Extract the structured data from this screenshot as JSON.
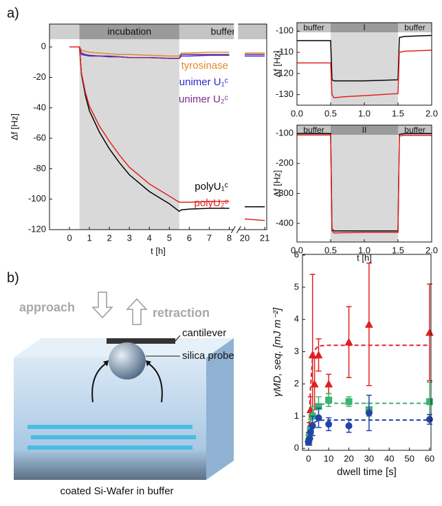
{
  "panel_labels": [
    "a)",
    "b)"
  ],
  "chart_data": [
    {
      "type": "line",
      "xlabel": "t [h]",
      "ylabel": "Δf [Hz]",
      "xlim": [
        -1,
        21.1
      ],
      "x_break": [
        8.2,
        19.7
      ],
      "ylim": [
        -120,
        15
      ],
      "xticks": [
        0,
        1,
        2,
        3,
        4,
        5,
        6,
        7,
        8,
        20,
        21
      ],
      "yticks": [
        0,
        -20,
        -40,
        -60,
        -80,
        -100,
        -120
      ],
      "regions": [
        {
          "label": "incubation",
          "x": [
            0.5,
            5.5
          ],
          "color": "#9a9a9a",
          "shaded": true
        },
        {
          "label": "buffer",
          "x": [
            5.5,
            21.1
          ],
          "color": "#c4c4c4",
          "shaded": false
        }
      ],
      "x": [
        0,
        0.5,
        0.6,
        0.8,
        1,
        1.5,
        2,
        2.5,
        3,
        4,
        5,
        5.5,
        5.6,
        6,
        7,
        8,
        20,
        21
      ],
      "series": [
        {
          "name": "tyrosinase",
          "color": "#e08a2c",
          "values": [
            0,
            0,
            -2,
            -3,
            -3.5,
            -4,
            -4.5,
            -5,
            -5,
            -5.5,
            -6,
            -6,
            -4,
            -4,
            -3.5,
            -3.5,
            -4,
            -4
          ]
        },
        {
          "name": "unimer U₁ᶜ",
          "color": "#2a2ad0",
          "values": [
            0,
            0,
            -5,
            -5.5,
            -6,
            -6,
            -6.5,
            -6.5,
            -7,
            -7,
            -7.5,
            -7.5,
            -6,
            -6,
            -5.5,
            -5.5,
            -6,
            -6
          ]
        },
        {
          "name": "unimer U₂ᶜ",
          "color": "#7a2a8a",
          "values": [
            0,
            0,
            -4,
            -5,
            -5.5,
            -6,
            -6,
            -6.5,
            -7,
            -7,
            -7.5,
            -7.5,
            -5,
            -5,
            -5,
            -5,
            -5,
            -5
          ]
        },
        {
          "name": "polyU₁ᶜ",
          "color": "#000000",
          "values": [
            0,
            0,
            -18,
            -32,
            -42,
            -56,
            -67,
            -76,
            -84,
            -95,
            -103,
            -108,
            -107,
            -106.5,
            -106,
            -106,
            -105,
            -105
          ]
        },
        {
          "name": "polyU₂ᶜ",
          "color": "#e02020",
          "values": [
            0,
            0,
            -17,
            -30,
            -39,
            -52,
            -62,
            -71,
            -79,
            -90,
            -98,
            -102,
            -102,
            -102,
            -101.5,
            -101.5,
            -113,
            -114
          ]
        }
      ]
    },
    {
      "type": "line",
      "ylabel": "Δf [Hz]",
      "xlim": [
        0,
        2
      ],
      "ylim": [
        -135,
        -96
      ],
      "xticks": [
        {
          "value": 0,
          "label": "0.0"
        },
        {
          "value": 0.5,
          "label": "0.5"
        },
        {
          "value": 1,
          "label": "1.0"
        },
        {
          "value": 1.5,
          "label": "1.5"
        },
        {
          "value": 2,
          "label": "2.0"
        }
      ],
      "yticks": [
        -100,
        -110,
        -120,
        -130
      ],
      "regions": [
        {
          "label": "buffer",
          "x": [
            0,
            0.5
          ],
          "color": "#c4c4c4",
          "shaded": false
        },
        {
          "label": "I",
          "x": [
            0.5,
            1.5
          ],
          "color": "#9a9a9a",
          "shaded": true
        },
        {
          "label": "buffer",
          "x": [
            1.5,
            2
          ],
          "color": "#c4c4c4",
          "shaded": false
        }
      ],
      "x": [
        0,
        0.5,
        0.52,
        0.55,
        0.7,
        1,
        1.5,
        1.52,
        1.6,
        2
      ],
      "series": [
        {
          "color": "#000000",
          "values": [
            -104.5,
            -104.5,
            -123,
            -123.5,
            -123.5,
            -123.5,
            -123,
            -103,
            -102.5,
            -102
          ]
        },
        {
          "color": "#e02020",
          "values": [
            -115,
            -115,
            -130,
            -131.5,
            -131,
            -130.5,
            -129.5,
            -110,
            -109.5,
            -109
          ]
        }
      ]
    },
    {
      "type": "line",
      "xlabel": "t [h]",
      "ylabel": "Δf [Hz]",
      "xlim": [
        0,
        2
      ],
      "ylim": [
        -462,
        -72
      ],
      "xticks": [
        {
          "value": 0,
          "label": "0.0"
        },
        {
          "value": 0.5,
          "label": "0.5"
        },
        {
          "value": 1,
          "label": "1.0"
        },
        {
          "value": 1.5,
          "label": "1.5"
        },
        {
          "value": 2,
          "label": "2.0"
        }
      ],
      "yticks": [
        -100,
        -200,
        -300,
        -400
      ],
      "regions": [
        {
          "label": "buffer",
          "x": [
            0,
            0.5
          ],
          "color": "#c4c4c4",
          "shaded": false
        },
        {
          "label": "II",
          "x": [
            0.5,
            1.5
          ],
          "color": "#9a9a9a",
          "shaded": true
        },
        {
          "label": "buffer",
          "x": [
            1.5,
            2
          ],
          "color": "#c4c4c4",
          "shaded": false
        }
      ],
      "x": [
        0,
        0.5,
        0.52,
        0.55,
        0.7,
        1,
        1.5,
        1.52,
        1.6,
        2
      ],
      "series": [
        {
          "color": "#000000",
          "values": [
            -100,
            -100,
            -420,
            -425,
            -425,
            -425,
            -425,
            -103,
            -100,
            -100
          ]
        },
        {
          "color": "#e02020",
          "values": [
            -105,
            -105,
            -425,
            -432,
            -431,
            -430,
            -430,
            -108,
            -106,
            -106
          ]
        }
      ]
    },
    {
      "type": "scatter",
      "xlabel": "dwell time [s]",
      "ylabel": "γMD, seq. [mJ m⁻²]",
      "xlim": [
        -3,
        60.7
      ],
      "ylim": [
        -0.06,
        6.02
      ],
      "xticks": [
        0,
        10,
        20,
        30,
        40,
        50,
        60
      ],
      "yticks": [
        0,
        1,
        2,
        3,
        4,
        5,
        6
      ],
      "series": [
        {
          "color": "#e02020",
          "marker": "triangle",
          "x": [
            0,
            0.5,
            1,
            2,
            3,
            5,
            10,
            20,
            30,
            60
          ],
          "values": [
            0.3,
            0.5,
            1.2,
            2.9,
            2,
            2.9,
            2,
            3.3,
            3.85,
            3.6
          ],
          "errors": [
            0.2,
            0.3,
            0.4,
            2.5,
            0.8,
            0.5,
            0.3,
            1.1,
            1.9,
            1.5
          ],
          "fit": {
            "x": [
              0,
              1,
              2,
              3,
              5,
              10,
              60
            ],
            "values": [
              0.3,
              1.9,
              2.8,
              3.05,
              3.18,
              3.2,
              3.2
            ]
          }
        },
        {
          "color": "#3cb371",
          "marker": "square",
          "x": [
            0,
            0.5,
            1,
            2,
            5,
            10,
            20,
            30,
            60
          ],
          "values": [
            0.2,
            0.4,
            0.6,
            1,
            1.3,
            1.5,
            1.45,
            1.2,
            1.45
          ],
          "errors": [
            0.1,
            0.2,
            0.3,
            0.3,
            0.3,
            0.2,
            0.15,
            0.2,
            0.6
          ],
          "fit": {
            "x": [
              0,
              1,
              2,
              5,
              10,
              60
            ],
            "values": [
              0.2,
              0.8,
              1.1,
              1.35,
              1.4,
              1.4
            ]
          }
        },
        {
          "color": "#2244aa",
          "marker": "circle",
          "x": [
            0,
            0.5,
            1,
            2,
            5,
            10,
            20,
            30,
            60
          ],
          "values": [
            0.2,
            0.3,
            0.5,
            0.7,
            0.95,
            0.75,
            0.7,
            1.1,
            0.9
          ],
          "errors": [
            0.1,
            0.2,
            0.2,
            0.3,
            0.3,
            0.2,
            0.2,
            0.55,
            0.15
          ],
          "fit": {
            "x": [
              0,
              1,
              2,
              5,
              10,
              60
            ],
            "values": [
              0.2,
              0.6,
              0.78,
              0.87,
              0.88,
              0.88
            ]
          }
        }
      ]
    }
  ],
  "diagram": {
    "approach": "approach",
    "retraction": "retraction",
    "cantilever": "cantilever",
    "probe": "silica probe",
    "substrate": "coated Si-Wafer in buffer"
  }
}
